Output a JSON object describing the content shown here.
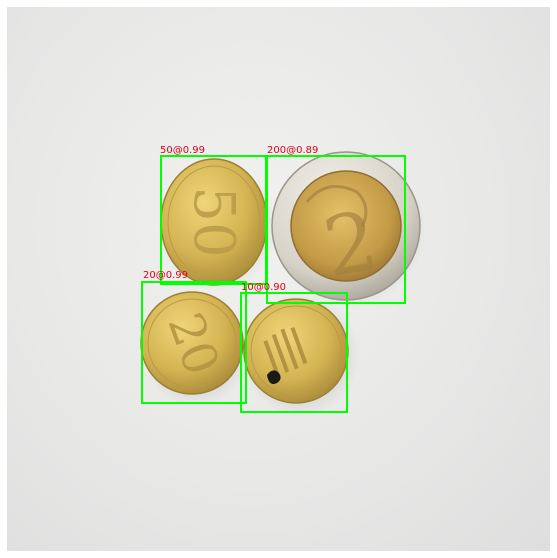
{
  "detections": [
    {
      "label": "50@0.99"
    },
    {
      "label": "200@0.89"
    },
    {
      "label": "20@0.99"
    },
    {
      "label": "10@0.90"
    }
  ],
  "colors": {
    "box": "#00ff00",
    "label": "#e0001a",
    "background": "#e9e9e8"
  }
}
